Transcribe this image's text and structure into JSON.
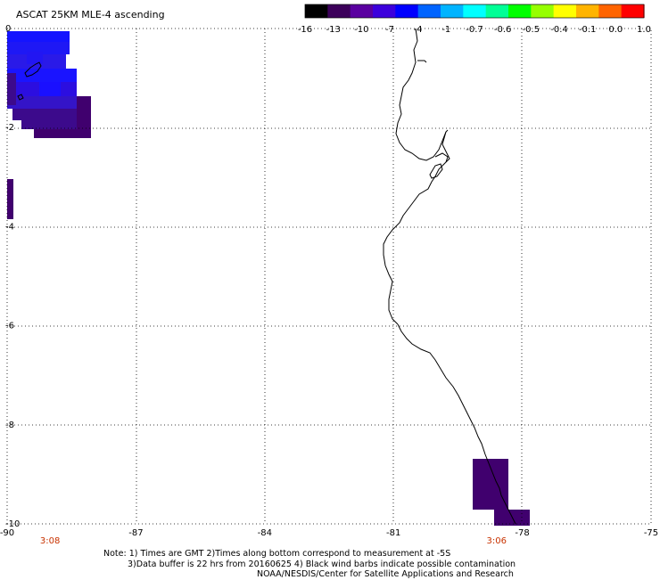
{
  "title": "ASCAT 25KM MLE-4 ascending",
  "colorbar": {
    "labels": [
      "-16",
      "-13",
      "-10",
      "-7",
      "-4",
      "-1",
      "-0.7",
      "-0.6",
      "-0.5",
      "-0.4",
      "-0.1",
      "0.0",
      "1.0"
    ],
    "colors": [
      "#000000",
      "#3c005a",
      "#5a00a0",
      "#3c00dc",
      "#0000ff",
      "#0064ff",
      "#00b4ff",
      "#00ffff",
      "#00ff96",
      "#00ff00",
      "#96ff00",
      "#ffff00",
      "#ffb400",
      "#ff6400",
      "#ff0000"
    ]
  },
  "axes": {
    "lon_ticks": [
      "-90",
      "-87",
      "-84",
      "-81",
      "-78",
      "-75"
    ],
    "lat_ticks": [
      "0",
      "-2",
      "-4",
      "-6",
      "-8",
      "-10"
    ],
    "lon_range": [
      -90,
      -75
    ],
    "lat_range": [
      0,
      -10
    ]
  },
  "times": [
    {
      "label": "3:08",
      "lon": -89.0
    },
    {
      "label": "3:06",
      "lon": -78.6
    }
  ],
  "notes": [
    "Note: 1) Times are GMT 2)Times along bottom correspond to measurement at -5S",
    "3)Data buffer is 22 hrs from 20160625 4) Black wind barbs indicate possible contamination",
    "NOAA/NESDIS/Center for Satellite Applications and Research"
  ],
  "colors": {
    "blue": "#1414ff",
    "blue_dark": "#2810e6",
    "purple": "#3c0a8c",
    "purple_dark": "#40006e",
    "time_red": "#c83200"
  }
}
